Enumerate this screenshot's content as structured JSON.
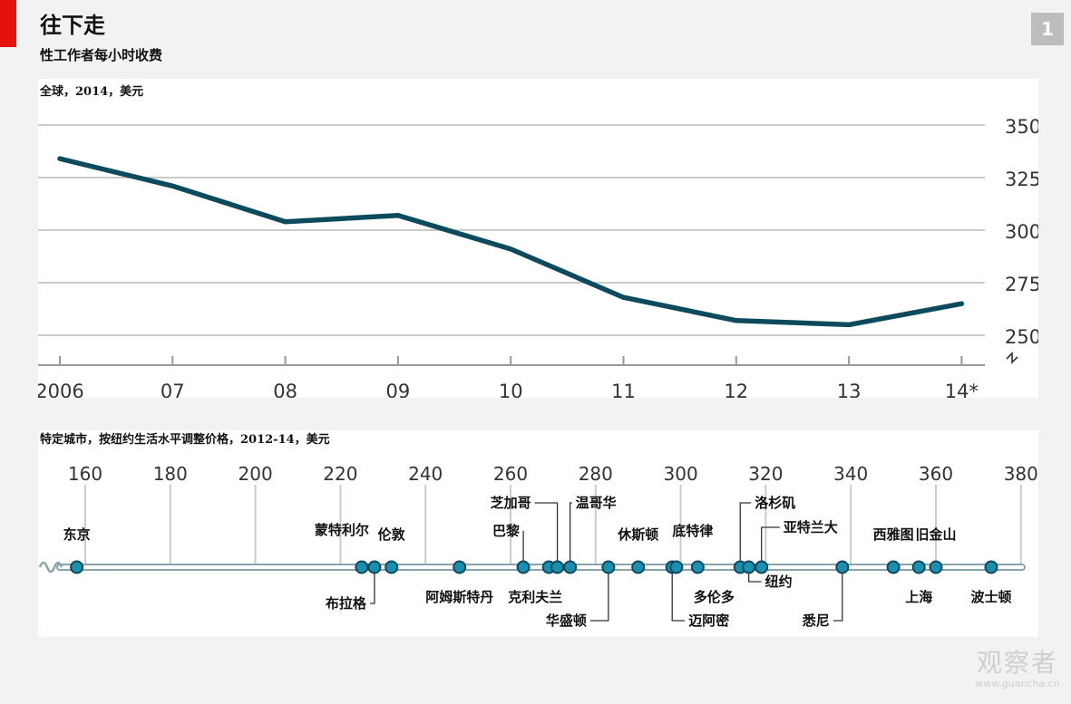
{
  "header": {
    "title": "往下走",
    "subtitle": "性工作者每小时收费",
    "page_number": "1"
  },
  "watermark": {
    "text": "观察者",
    "url": "www.guancha.cn"
  },
  "colors": {
    "accent_red": "#e3120b",
    "line": "#0c4a5e",
    "dot": "#1a8fb0",
    "grid": "#cccccc"
  },
  "chart_data": [
    {
      "type": "line",
      "title": "全球，2014，美元",
      "x": [
        "2006",
        "07",
        "08",
        "09",
        "10",
        "11",
        "12",
        "13",
        "14*"
      ],
      "series": [
        {
          "values": [
            334,
            321,
            304,
            307,
            291,
            268,
            257,
            255,
            265
          ]
        }
      ],
      "ylim": [
        240,
        355
      ],
      "yticks": [
        250,
        275,
        300,
        325,
        350
      ],
      "ytick_labels": [
        "250",
        "275",
        "300",
        "325",
        "350"
      ],
      "y_axis_side": "right",
      "y_axis_break": true,
      "grid": true
    },
    {
      "type": "scatter",
      "title": "特定城市，按纽约生活水平调整价格，2012-14，美元",
      "xlim": [
        150,
        380
      ],
      "xticks": [
        160,
        180,
        200,
        220,
        240,
        260,
        280,
        300,
        320,
        340,
        360,
        380
      ],
      "xtick_labels": [
        "160",
        "180",
        "200",
        "220",
        "240",
        "260",
        "280",
        "300",
        "320",
        "340",
        "360",
        "380"
      ],
      "axis_break": true,
      "points": [
        {
          "name": "东京",
          "value": 158,
          "label_pos": "above"
        },
        {
          "name": "蒙特利尔",
          "value": 225,
          "label_pos": "above"
        },
        {
          "name": "布拉格",
          "value": 228,
          "label_pos": "below"
        },
        {
          "name": "伦敦",
          "value": 232,
          "label_pos": "above"
        },
        {
          "name": "阿姆斯特丹",
          "value": 248,
          "label_pos": "below"
        },
        {
          "name": "巴黎",
          "value": 263,
          "label_pos": "above"
        },
        {
          "name": "克利夫兰",
          "value": 269,
          "label_pos": "below"
        },
        {
          "name": "芝加哥",
          "value": 271,
          "label_pos": "above"
        },
        {
          "name": "温哥华",
          "value": 274,
          "label_pos": "above"
        },
        {
          "name": "华盛顿",
          "value": 283,
          "label_pos": "below"
        },
        {
          "name": "休斯顿",
          "value": 290,
          "label_pos": "above"
        },
        {
          "name": "迈阿密",
          "value": 298,
          "label_pos": "below"
        },
        {
          "name": "底特律",
          "value": 299,
          "label_pos": "above"
        },
        {
          "name": "多伦多",
          "value": 304,
          "label_pos": "below"
        },
        {
          "name": "洛杉矶",
          "value": 314,
          "label_pos": "above"
        },
        {
          "name": "纽约",
          "value": 316,
          "label_pos": "below"
        },
        {
          "name": "亚特兰大",
          "value": 319,
          "label_pos": "above"
        },
        {
          "name": "悉尼",
          "value": 338,
          "label_pos": "below"
        },
        {
          "name": "西雅图",
          "value": 350,
          "label_pos": "above"
        },
        {
          "name": "上海",
          "value": 356,
          "label_pos": "below"
        },
        {
          "name": "旧金山",
          "value": 360,
          "label_pos": "above"
        },
        {
          "name": "波士顿",
          "value": 373,
          "label_pos": "below"
        }
      ]
    }
  ]
}
